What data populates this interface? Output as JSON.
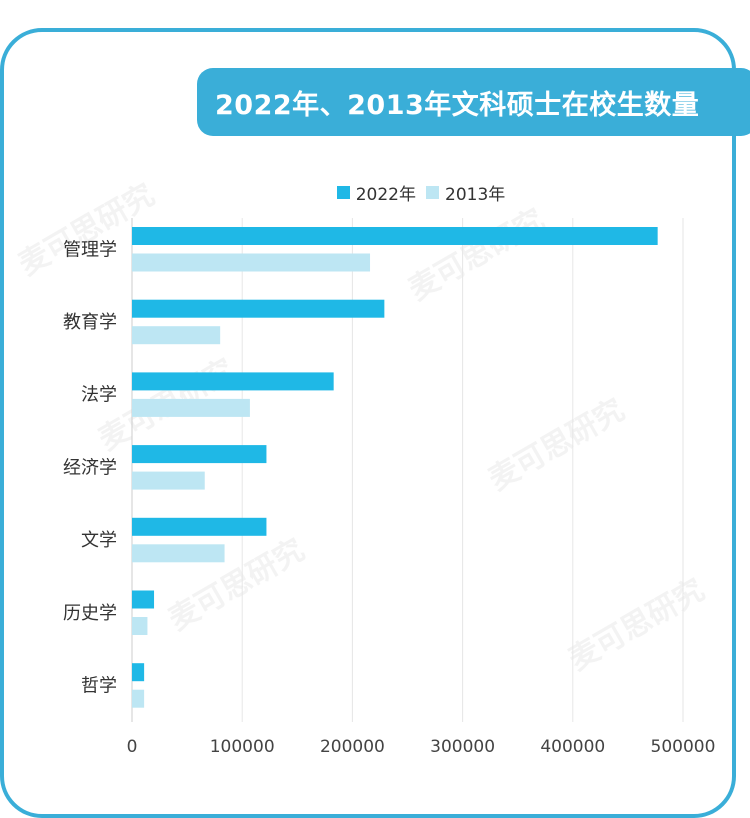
{
  "chart_data": {
    "type": "bar",
    "orientation": "horizontal",
    "title": "2022年、2013年文科硕士在校生数量",
    "categories": [
      "管理学",
      "教育学",
      "法学",
      "经济学",
      "文学",
      "历史学",
      "哲学"
    ],
    "series": [
      {
        "name": "2022年",
        "color": "#1fb8e6",
        "values": [
          477000,
          229000,
          183000,
          122000,
          122000,
          20000,
          11000
        ]
      },
      {
        "name": "2013年",
        "color": "#bde6f3",
        "values": [
          216000,
          80000,
          107000,
          66000,
          84000,
          14000,
          11000
        ]
      }
    ],
    "xlim": [
      0,
      500000
    ],
    "xticks": [
      "0",
      "100000",
      "200000",
      "300000",
      "400000",
      "500000"
    ],
    "grid": true,
    "legend_position": "top-center"
  },
  "watermark": "麦可思研究"
}
